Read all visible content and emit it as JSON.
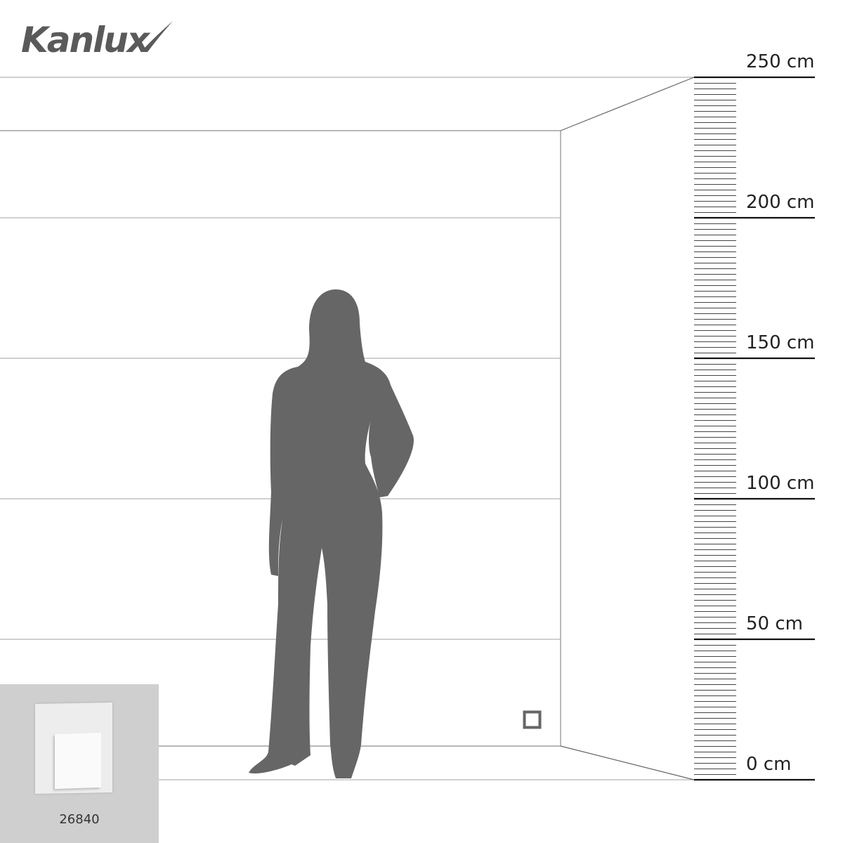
{
  "brand": "Kanlux",
  "scale": {
    "unit": "cm",
    "labels": [
      "250 cm",
      "200 cm",
      "150 cm",
      "100 cm",
      "50 cm",
      "0 cm"
    ],
    "values": [
      250,
      200,
      150,
      100,
      50,
      0
    ],
    "tick_step_cm": 2
  },
  "product": {
    "code": "26840"
  },
  "colors": {
    "silhouette": "#666666",
    "lines": "#bbbbbb",
    "scale": "#111111",
    "inset_bg": "#cfcfcf"
  }
}
